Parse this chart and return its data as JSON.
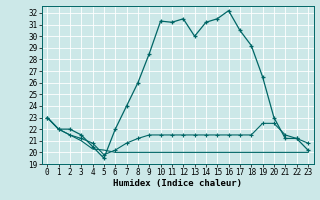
{
  "xlabel": "Humidex (Indice chaleur)",
  "bg_color": "#cce8e8",
  "grid_color": "#b8d8d8",
  "line_color": "#006666",
  "xlim": [
    -0.5,
    23.5
  ],
  "ylim": [
    19,
    32.6
  ],
  "yticks": [
    19,
    20,
    21,
    22,
    23,
    24,
    25,
    26,
    27,
    28,
    29,
    30,
    31,
    32
  ],
  "xticks": [
    0,
    1,
    2,
    3,
    4,
    5,
    6,
    7,
    8,
    9,
    10,
    11,
    12,
    13,
    14,
    15,
    16,
    17,
    18,
    19,
    20,
    21,
    22,
    23
  ],
  "curve1_x": [
    0,
    1,
    2,
    3,
    4,
    5,
    6,
    7,
    8,
    9,
    10,
    11,
    12,
    13,
    14,
    15,
    16,
    17,
    18,
    19,
    20,
    21,
    22,
    23
  ],
  "curve1_y": [
    23.0,
    22.0,
    22.0,
    21.5,
    20.5,
    19.5,
    22.0,
    24.0,
    26.0,
    28.5,
    31.3,
    31.2,
    31.5,
    30.0,
    31.2,
    31.5,
    32.2,
    30.5,
    29.2,
    26.5,
    23.0,
    21.2,
    21.2,
    20.2
  ],
  "curve2_x": [
    0,
    1,
    2,
    3,
    4,
    5,
    6,
    7,
    8,
    9,
    10,
    11,
    12,
    13,
    14,
    15,
    16,
    17,
    18,
    19,
    20,
    21,
    22,
    23
  ],
  "curve2_y": [
    23.0,
    22.0,
    21.5,
    21.2,
    20.8,
    19.8,
    20.2,
    20.8,
    21.2,
    21.5,
    21.5,
    21.5,
    21.5,
    21.5,
    21.5,
    21.5,
    21.5,
    21.5,
    21.5,
    22.5,
    22.5,
    21.5,
    21.2,
    20.8
  ],
  "curve3_x": [
    0,
    1,
    2,
    3,
    4,
    5,
    6,
    7,
    8,
    9,
    10,
    11,
    12,
    13,
    14,
    15,
    16,
    17,
    18,
    19,
    20,
    21,
    22,
    23
  ],
  "curve3_y": [
    23.0,
    22.0,
    21.5,
    21.0,
    20.3,
    20.2,
    20.0,
    20.0,
    20.0,
    20.0,
    20.0,
    20.0,
    20.0,
    20.0,
    20.0,
    20.0,
    20.0,
    20.0,
    20.0,
    20.0,
    20.0,
    20.0,
    20.0,
    20.0
  ],
  "tick_fontsize": 5.5,
  "xlabel_fontsize": 6.5
}
